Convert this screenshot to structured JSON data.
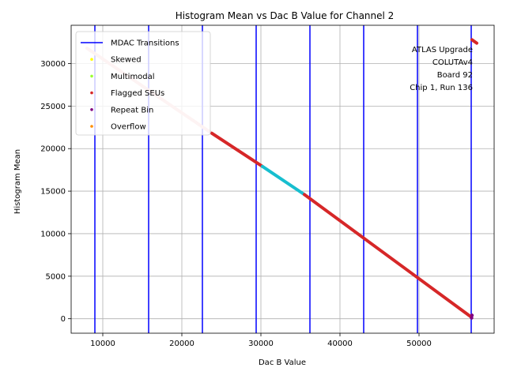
{
  "chart_data": {
    "type": "scatter",
    "title": "Histogram Mean vs Dac B Value for Channel 2",
    "xlabel": "Dac B Value",
    "ylabel": "Histogram Mean",
    "xlim": [
      6000,
      59500
    ],
    "ylim": [
      -1700,
      34500
    ],
    "x_ticks": [
      10000,
      20000,
      30000,
      40000,
      50000
    ],
    "y_ticks": [
      0,
      5000,
      10000,
      15000,
      20000,
      25000,
      30000
    ],
    "grid": true,
    "legend_position": "top-left",
    "annotation": [
      "ATLAS Upgrade",
      "COLUTAv4",
      "Board 92",
      "Chip 1, Run 136"
    ],
    "mdac_transitions": {
      "name": "MDAC Transitions",
      "color": "#0000ff",
      "x": [
        9000,
        15800,
        22600,
        29400,
        36200,
        43000,
        49800,
        56600
      ]
    },
    "series": [
      {
        "name": "Skewed",
        "color": "#ffff00",
        "points": []
      },
      {
        "name": "Multimodal",
        "color": "#99ff33",
        "points": []
      },
      {
        "name": "Flagged SEUs",
        "color": "#d62728",
        "points": []
      },
      {
        "name": "Repeat Bin",
        "color": "#800080",
        "points": []
      },
      {
        "name": "Overflow",
        "color": "#ff8c00",
        "points": []
      }
    ],
    "data_segments": [
      {
        "color": "#d62728",
        "x": [
          23800,
          30200
        ],
        "y": [
          21800,
          17900
        ]
      },
      {
        "color": "#17becf",
        "x": [
          30200,
          35500
        ],
        "y": [
          17900,
          14600
        ]
      },
      {
        "color": "#d62728",
        "x": [
          35500,
          56600
        ],
        "y": [
          14600,
          200
        ]
      }
    ],
    "light_segment": {
      "color": "#f4c2c2",
      "x": [
        8000,
        23800
      ],
      "y": [
        31800,
        21800
      ]
    },
    "top_cluster": {
      "color": "#d62728",
      "x": [
        56700,
        57300
      ],
      "y": [
        32800,
        32400
      ]
    },
    "bottom_points": [
      {
        "color": "#800080",
        "x": 56700,
        "y": 400
      },
      {
        "color": "#800080",
        "x": 56650,
        "y": 100
      }
    ]
  }
}
